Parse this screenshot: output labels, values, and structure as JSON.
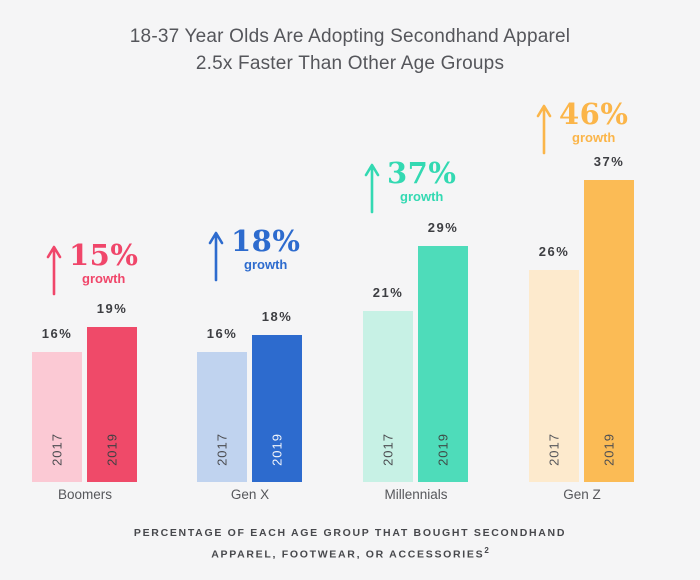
{
  "title": {
    "line1": "18-37 Year Olds Are Adopting Secondhand Apparel",
    "line2": "2.5x Faster Than Other Age Groups"
  },
  "footer": {
    "line1": "PERCENTAGE OF EACH AGE GROUP THAT BOUGHT SECONDHAND",
    "line2": "APPAREL, FOOTWEAR, OR ACCESSORIES",
    "footnote_mark": "2"
  },
  "colors": {
    "background": "#f5f5f6",
    "value_label_text": "#3d3e42",
    "title_text": "#55565b",
    "footer_text": "#47484c",
    "category_text": "#56575b"
  },
  "chart_data": {
    "type": "bar",
    "title": "18-37 Year Olds Are Adopting Secondhand Apparel 2.5x Faster Than Other Age Groups",
    "note": "Percentage of each age group that bought secondhand apparel, footwear, or accessories",
    "unit": "percent",
    "categories": [
      "Boomers",
      "Gen X",
      "Millennials",
      "Gen Z"
    ],
    "series": [
      {
        "name": "2017",
        "values": [
          16,
          16,
          21,
          26
        ]
      },
      {
        "name": "2019",
        "values": [
          19,
          18,
          29,
          37
        ]
      }
    ],
    "growth_pct": [
      15,
      18,
      37,
      46
    ],
    "ylim": [
      0,
      40
    ],
    "grid": false,
    "legend_position": "years printed vertically inside bars",
    "groups": [
      {
        "category": "Boomers",
        "growth": {
          "value_label": "15%",
          "caption": "growth",
          "color": "#f0466a"
        },
        "bars": [
          {
            "year": "2017",
            "value": 16,
            "value_label": "16%",
            "fill": "#fbc9d4",
            "year_text_color": "#4b4c50"
          },
          {
            "year": "2019",
            "value": 19,
            "value_label": "19%",
            "fill": "#ef4a69",
            "year_text_color": "#3f4043"
          }
        ]
      },
      {
        "category": "Gen X",
        "growth": {
          "value_label": "18%",
          "caption": "growth",
          "color": "#2d6bce"
        },
        "bars": [
          {
            "year": "2017",
            "value": 16,
            "value_label": "16%",
            "fill": "#c0d3ef",
            "year_text_color": "#4b4c50"
          },
          {
            "year": "2019",
            "value": 18,
            "value_label": "18%",
            "fill": "#2d6bce",
            "year_text_color": "#f3f6fb"
          }
        ]
      },
      {
        "category": "Millennials",
        "growth": {
          "value_label": "37%",
          "caption": "growth",
          "color": "#33d9b2"
        },
        "bars": [
          {
            "year": "2017",
            "value": 21,
            "value_label": "21%",
            "fill": "#c7f1e5",
            "year_text_color": "#4b4c50"
          },
          {
            "year": "2019",
            "value": 29,
            "value_label": "29%",
            "fill": "#4edcba",
            "year_text_color": "#3f4a46"
          }
        ]
      },
      {
        "category": "Gen Z",
        "growth": {
          "value_label": "46%",
          "caption": "growth",
          "color": "#fbb549"
        },
        "bars": [
          {
            "year": "2017",
            "value": 26,
            "value_label": "26%",
            "fill": "#fdeacd",
            "year_text_color": "#55565a"
          },
          {
            "year": "2019",
            "value": 37,
            "value_label": "37%",
            "fill": "#fbbb55",
            "year_text_color": "#4d4e52"
          }
        ]
      }
    ]
  }
}
